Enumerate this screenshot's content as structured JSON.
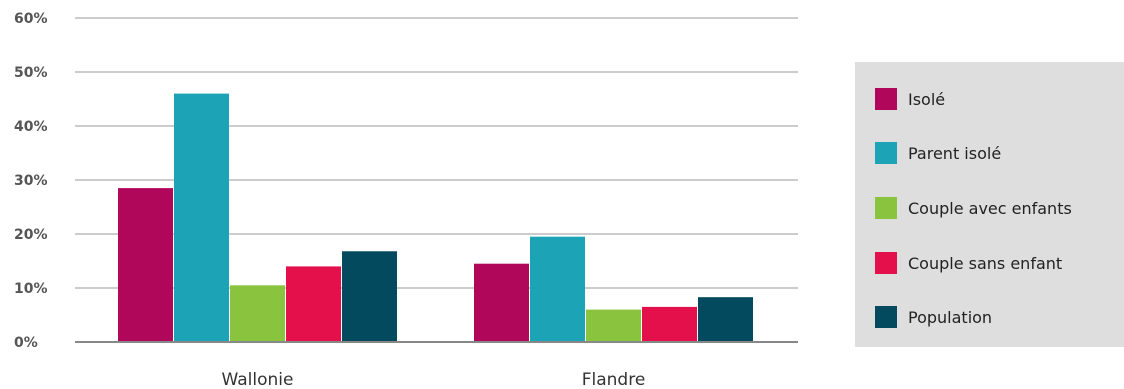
{
  "chart_data": {
    "type": "bar",
    "categories": [
      "Wallonie",
      "Flandre"
    ],
    "series": [
      {
        "name": "Isolé",
        "values": [
          28.5,
          14.5
        ],
        "color": "#b0075a"
      },
      {
        "name": "Parent isolé",
        "values": [
          46,
          19.5
        ],
        "color": "#1da3b6"
      },
      {
        "name": "Couple avec enfants",
        "values": [
          10.5,
          6
        ],
        "color": "#8ac43f"
      },
      {
        "name": "Couple sans enfant",
        "values": [
          14,
          6.5
        ],
        "color": "#e3104c"
      },
      {
        "name": "Population",
        "values": [
          16.8,
          8.3
        ],
        "color": "#044a5e"
      }
    ],
    "ylim": [
      0,
      60
    ],
    "yticks": [
      "0%",
      "10%",
      "20%",
      "30%",
      "40%",
      "50%",
      "60%"
    ],
    "grid": true,
    "legend_position": "right"
  }
}
